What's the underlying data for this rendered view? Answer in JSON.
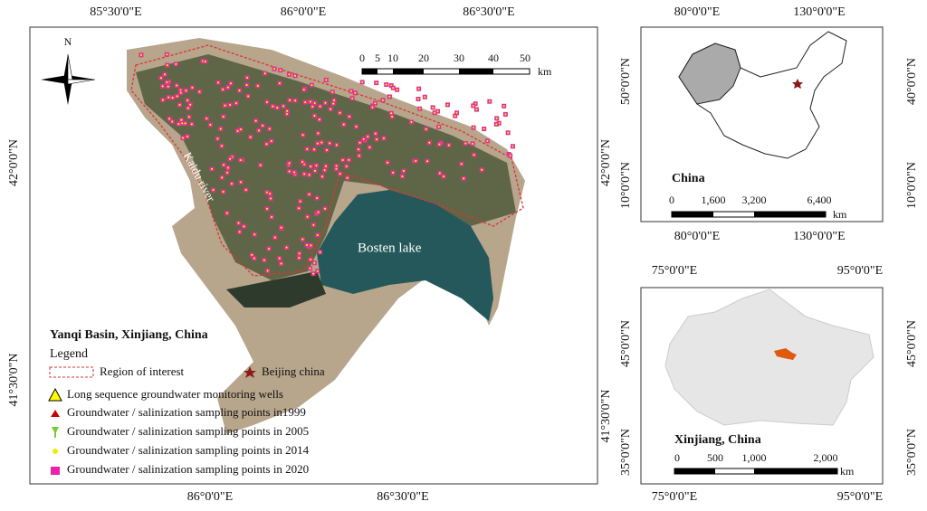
{
  "main_map": {
    "title": "Yanqi Basin, Xinjiang, China",
    "legend_title": "Legend",
    "north": "N",
    "lake_label": "Bosten lake",
    "river_label": "Kaidu river",
    "top_labels": [
      "85°30'0\"E",
      "86°0'0\"E",
      "86°30'0\"E"
    ],
    "bottom_labels": [
      "86°0'0\"E",
      "86°30'0\"E"
    ],
    "left_labels": [
      "42°0'0\"N",
      "41°30'0\"N"
    ],
    "right_labels": [
      "42°0'0\"N",
      "41°30'0\"N"
    ],
    "scale": [
      "0",
      "5",
      "10",
      "20",
      "30",
      "40",
      "50"
    ],
    "scale_unit": "km",
    "legend": [
      "Region of interest",
      "Beijing china",
      "Long sequence groundwater monitoring wells",
      "Groundwater / salinization sampling points in1999",
      "Groundwater / salinization sampling points in 2005",
      "Groundwater / salinization sampling points in 2014",
      "Groundwater / salinization sampling points in 2020"
    ]
  },
  "china_inset": {
    "title": "China",
    "top_labels": [
      "80°0'0\"E",
      "130°0'0\"E"
    ],
    "bottom_labels": [
      "80°0'0\"E",
      "130°0'0\"E"
    ],
    "left_labels": [
      "50°0'0\"N",
      "10°0'0\"N"
    ],
    "right_labels": [
      "40°0'0\"N",
      "10°0'0\"N"
    ],
    "scale": [
      "0",
      "1,600",
      "3,200",
      "6,400"
    ],
    "scale_unit": "km"
  },
  "xinjiang_inset": {
    "title": "Xinjiang, China",
    "top_labels": [
      "75°0'0\"E",
      "95°0'0\"E"
    ],
    "bottom_labels": [
      "75°0'0\"E",
      "95°0'0\"E"
    ],
    "left_labels": [
      "45°0'0\"N",
      "35°0'0\"N"
    ],
    "right_labels": [
      "45°0'0\"N",
      "35°0'0\"N"
    ],
    "scale": [
      "0",
      "500",
      "1,000",
      "2,000"
    ],
    "scale_unit": "km"
  }
}
